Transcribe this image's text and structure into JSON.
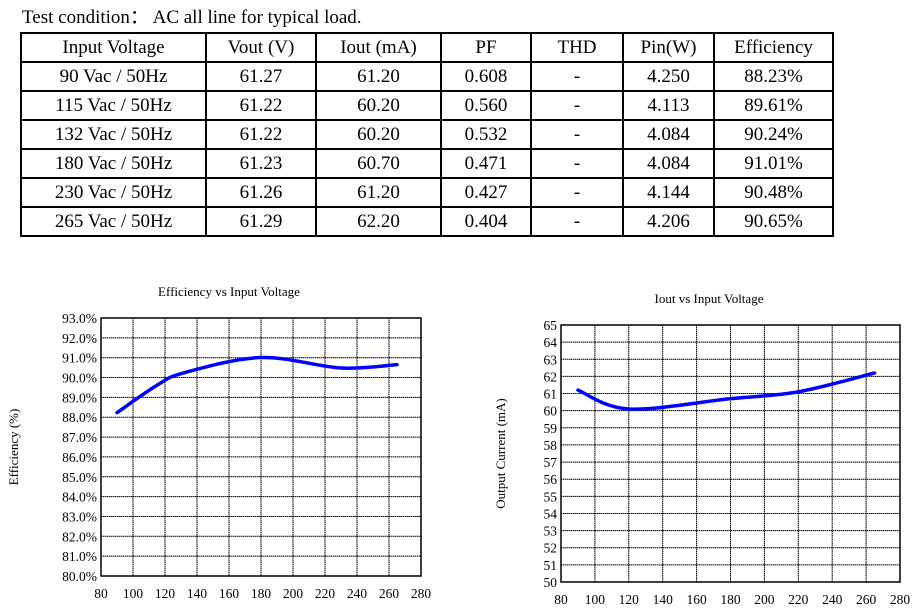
{
  "test_condition": "Test condition： AC all line for typical load.",
  "table": {
    "headers": [
      "Input Voltage",
      "Vout (V)",
      "Iout (mA)",
      "PF",
      "THD",
      "Pin(W)",
      "Efficiency"
    ],
    "rows": [
      [
        "90 Vac / 50Hz",
        "61.27",
        "61.20",
        "0.608",
        "-",
        "4.250",
        "88.23%"
      ],
      [
        "115 Vac / 50Hz",
        "61.22",
        "60.20",
        "0.560",
        "-",
        "4.113",
        "89.61%"
      ],
      [
        "132 Vac / 50Hz",
        "61.22",
        "60.20",
        "0.532",
        "-",
        "4.084",
        "90.24%"
      ],
      [
        "180 Vac / 50Hz",
        "61.23",
        "60.70",
        "0.471",
        "-",
        "4.084",
        "91.01%"
      ],
      [
        "230 Vac / 50Hz",
        "61.26",
        "61.20",
        "0.427",
        "-",
        "4.144",
        "90.48%"
      ],
      [
        "265 Vac / 50Hz",
        "61.29",
        "62.20",
        "0.404",
        "-",
        "4.206",
        "90.65%"
      ]
    ]
  },
  "chart_data": [
    {
      "type": "line",
      "title": "Efficiency vs Input Voltage",
      "xlabel": "",
      "ylabel": "Efficiency (%)",
      "xlim": [
        80,
        280
      ],
      "ylim": [
        80,
        93
      ],
      "xticks": [
        "80",
        "100",
        "120",
        "140",
        "160",
        "180",
        "200",
        "220",
        "240",
        "260",
        "280"
      ],
      "yticks": [
        "80.0%",
        "81.0%",
        "82.0%",
        "83.0%",
        "84.0%",
        "85.0%",
        "86.0%",
        "87.0%",
        "88.0%",
        "89.0%",
        "90.0%",
        "91.0%",
        "92.0%",
        "93.0%"
      ],
      "grid": true,
      "color": "#0000ff",
      "x": [
        90,
        115,
        132,
        180,
        230,
        265
      ],
      "y": [
        88.23,
        89.61,
        90.24,
        91.01,
        90.48,
        90.65
      ]
    },
    {
      "type": "line",
      "title": "Iout vs Input Voltage",
      "xlabel": "",
      "ylabel": "Output Current (mA)",
      "xlim": [
        80,
        280
      ],
      "ylim": [
        50,
        65
      ],
      "xticks": [
        "80",
        "100",
        "120",
        "140",
        "160",
        "180",
        "200",
        "220",
        "240",
        "260",
        "280"
      ],
      "yticks": [
        "50",
        "51",
        "52",
        "53",
        "54",
        "55",
        "56",
        "57",
        "58",
        "59",
        "60",
        "61",
        "62",
        "63",
        "64",
        "65"
      ],
      "grid": true,
      "color": "#0000ff",
      "x": [
        90,
        120,
        180,
        220,
        265
      ],
      "y": [
        61.2,
        60.1,
        60.7,
        61.1,
        62.2
      ]
    }
  ]
}
